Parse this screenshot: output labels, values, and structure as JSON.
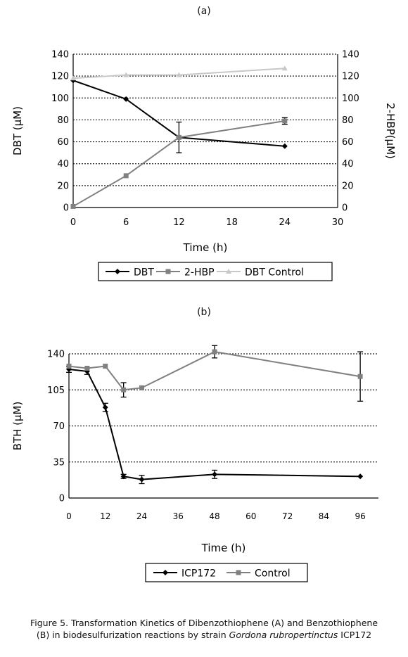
{
  "chart_data": [
    {
      "panel": "(a)",
      "type": "line",
      "xlabel": "Time (h)",
      "ylabel": "DBT (μM)",
      "ylabel_right": "2-HBP(μM)",
      "xlim": [
        0,
        30
      ],
      "ylim": [
        0,
        140
      ],
      "xticks": [
        "0",
        "6",
        "12",
        "18",
        "24",
        "30"
      ],
      "yticks": [
        "0",
        "20",
        "40",
        "60",
        "80",
        "100",
        "120",
        "140"
      ],
      "grid": "horizontal dotted",
      "legend_position": "bottom",
      "series": [
        {
          "name": "DBT",
          "color": "#000000",
          "marker": "diamond",
          "x": [
            0,
            6,
            12,
            24
          ],
          "y": [
            116,
            99,
            64,
            56
          ],
          "err": [
            0,
            0,
            14,
            0
          ]
        },
        {
          "name": "2-HBP",
          "color": "#808080",
          "marker": "square",
          "x": [
            0,
            6,
            12,
            24
          ],
          "y": [
            1,
            29,
            64,
            79
          ],
          "err": [
            0,
            0,
            0,
            3
          ]
        },
        {
          "name": "DBT Control",
          "color": "#c8c8c8",
          "marker": "triangle",
          "x": [
            0,
            6,
            12,
            24
          ],
          "y": [
            118,
            121,
            121,
            127
          ],
          "err": [
            0,
            0,
            0,
            0
          ]
        }
      ]
    },
    {
      "panel": "(b)",
      "type": "line",
      "xlabel": "Time (h)",
      "ylabel": "BTH (μM)",
      "xlim": [
        0,
        102
      ],
      "ylim": [
        0,
        140
      ],
      "xticks": [
        "0",
        "12",
        "24",
        "36",
        "48",
        "60",
        "72",
        "84",
        "96"
      ],
      "yticks": [
        "0",
        "35",
        "70",
        "105",
        "140"
      ],
      "grid": "horizontal dotted",
      "legend_position": "bottom",
      "series": [
        {
          "name": "ICP172",
          "color": "#000000",
          "marker": "diamond",
          "x": [
            0,
            6,
            12,
            18,
            24,
            48,
            96
          ],
          "y": [
            125,
            123,
            88,
            21,
            18,
            23,
            21
          ],
          "err": [
            3,
            3,
            4,
            2,
            4,
            4,
            0
          ]
        },
        {
          "name": "Control",
          "color": "#808080",
          "marker": "square",
          "x": [
            0,
            6,
            12,
            18,
            24,
            48,
            96
          ],
          "y": [
            128,
            126,
            128,
            105,
            107,
            142,
            118
          ],
          "err": [
            0,
            0,
            0,
            7,
            0,
            6,
            24
          ]
        }
      ]
    }
  ],
  "caption": {
    "line1": "Figure 5. Transformation Kinetics of Dibenzothiophene (A) and Benzothiophene",
    "line2_pre": "(B) in biodesulfurization reactions by strain ",
    "line2_italic": "Gordona rubropertinctus",
    "line2_post": " ICP172"
  }
}
